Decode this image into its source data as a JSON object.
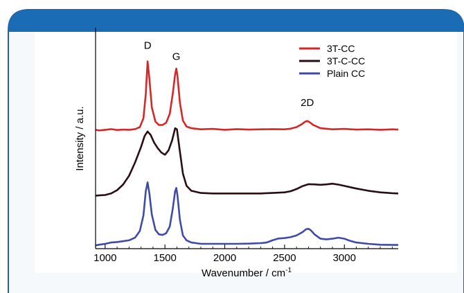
{
  "colors": {
    "banner": "#1a6db5",
    "frame_border": "#2a5f9c",
    "frame_fill": "#f6f9fc",
    "axes": "#000000"
  },
  "chart_data": {
    "type": "line",
    "xlabel": "Wavenumber / cm",
    "xlabel_sup": "-1",
    "ylabel": "Intensity / a.u.",
    "xlim": [
      920,
      3450
    ],
    "ylim": [
      0,
      1
    ],
    "x_ticks": [
      1000,
      1500,
      2000,
      2500,
      3000
    ],
    "x_tick_labels": [
      "1000",
      "1500",
      "2000",
      "2500",
      "3000"
    ],
    "y_ticks_shown": false,
    "grid": false,
    "legend_position": "top-right",
    "annotations": [
      {
        "text": "D",
        "x": 1355,
        "y": 0.905
      },
      {
        "text": "G",
        "x": 1595,
        "y": 0.855
      },
      {
        "text": "2D",
        "x": 2690,
        "y": 0.645
      }
    ],
    "series": [
      {
        "name": "3T-CC",
        "color": "#d62728",
        "x": [
          920,
          950,
          1000,
          1050,
          1100,
          1150,
          1200,
          1250,
          1290,
          1320,
          1340,
          1355,
          1370,
          1390,
          1420,
          1450,
          1480,
          1510,
          1540,
          1565,
          1585,
          1595,
          1605,
          1625,
          1650,
          1680,
          1720,
          1800,
          1900,
          2000,
          2100,
          2200,
          2300,
          2400,
          2500,
          2550,
          2600,
          2640,
          2670,
          2690,
          2710,
          2740,
          2800,
          2900,
          3000,
          3100,
          3200,
          3300,
          3400,
          3450
        ],
        "y": [
          0.538,
          0.535,
          0.538,
          0.541,
          0.537,
          0.539,
          0.538,
          0.541,
          0.55,
          0.59,
          0.7,
          0.848,
          0.77,
          0.64,
          0.575,
          0.56,
          0.56,
          0.57,
          0.61,
          0.7,
          0.79,
          0.815,
          0.78,
          0.66,
          0.58,
          0.553,
          0.545,
          0.54,
          0.542,
          0.538,
          0.541,
          0.539,
          0.54,
          0.541,
          0.54,
          0.543,
          0.55,
          0.562,
          0.574,
          0.578,
          0.572,
          0.56,
          0.545,
          0.54,
          0.542,
          0.539,
          0.54,
          0.538,
          0.54,
          0.539
        ]
      },
      {
        "name": "3T-C-CC",
        "color": "#2a0d12",
        "x": [
          920,
          950,
          1000,
          1050,
          1100,
          1150,
          1200,
          1250,
          1300,
          1330,
          1355,
          1380,
          1410,
          1440,
          1470,
          1500,
          1530,
          1560,
          1585,
          1600,
          1620,
          1650,
          1680,
          1720,
          1800,
          1900,
          2000,
          2100,
          2200,
          2300,
          2400,
          2500,
          2550,
          2600,
          2650,
          2700,
          2750,
          2800,
          2850,
          2900,
          2950,
          3000,
          3100,
          3200,
          3300,
          3400,
          3450
        ],
        "y": [
          0.24,
          0.241,
          0.243,
          0.25,
          0.265,
          0.29,
          0.33,
          0.39,
          0.46,
          0.51,
          0.53,
          0.515,
          0.48,
          0.455,
          0.435,
          0.425,
          0.445,
          0.49,
          0.545,
          0.54,
          0.46,
          0.34,
          0.285,
          0.262,
          0.252,
          0.25,
          0.25,
          0.25,
          0.25,
          0.25,
          0.252,
          0.255,
          0.26,
          0.27,
          0.283,
          0.292,
          0.291,
          0.289,
          0.291,
          0.294,
          0.29,
          0.284,
          0.272,
          0.262,
          0.255,
          0.251,
          0.25
        ]
      },
      {
        "name": "Plain CC",
        "color": "#3f4aa8",
        "x": [
          920,
          950,
          1000,
          1050,
          1100,
          1150,
          1200,
          1250,
          1290,
          1320,
          1340,
          1355,
          1370,
          1390,
          1420,
          1450,
          1480,
          1510,
          1540,
          1565,
          1585,
          1595,
          1605,
          1625,
          1650,
          1680,
          1720,
          1800,
          1900,
          2000,
          2100,
          2200,
          2300,
          2350,
          2400,
          2450,
          2500,
          2550,
          2600,
          2650,
          2680,
          2700,
          2720,
          2750,
          2800,
          2850,
          2900,
          2950,
          3000,
          3050,
          3100,
          3200,
          3300,
          3400,
          3450
        ],
        "y": [
          0.015,
          0.018,
          0.022,
          0.028,
          0.03,
          0.034,
          0.038,
          0.05,
          0.08,
          0.15,
          0.26,
          0.3,
          0.25,
          0.155,
          0.085,
          0.065,
          0.062,
          0.07,
          0.1,
          0.18,
          0.26,
          0.275,
          0.24,
          0.13,
          0.06,
          0.038,
          0.028,
          0.022,
          0.022,
          0.022,
          0.022,
          0.023,
          0.025,
          0.028,
          0.038,
          0.046,
          0.048,
          0.052,
          0.06,
          0.075,
          0.088,
          0.09,
          0.083,
          0.065,
          0.045,
          0.042,
          0.045,
          0.05,
          0.045,
          0.035,
          0.028,
          0.022,
          0.018,
          0.017,
          0.017
        ]
      }
    ]
  }
}
